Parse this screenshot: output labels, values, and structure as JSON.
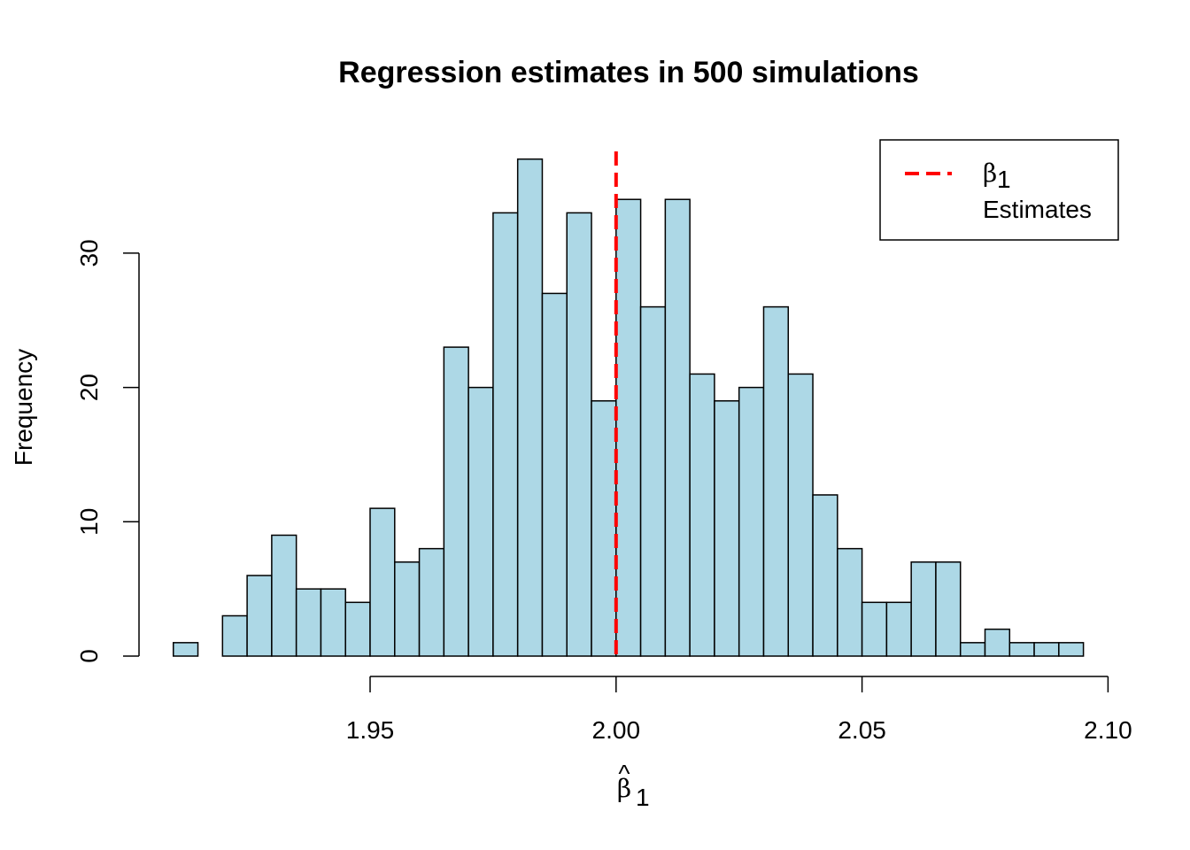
{
  "chart_data": {
    "type": "bar",
    "title": "Regression estimates in 500 simulations",
    "xlabel": "β̂1",
    "xlabel_parts": {
      "hat": "^",
      "symbol": "β",
      "subscript": "1"
    },
    "ylabel": "Frequency",
    "x_ticks": [
      "1.95",
      "2.00",
      "2.05",
      "2.10"
    ],
    "y_ticks": [
      "0",
      "10",
      "20",
      "30"
    ],
    "bin_start": 1.91,
    "bin_width": 0.005,
    "values": [
      1,
      0,
      3,
      6,
      9,
      5,
      5,
      4,
      11,
      7,
      8,
      23,
      20,
      33,
      37,
      27,
      33,
      19,
      34,
      26,
      34,
      21,
      19,
      20,
      26,
      21,
      12,
      8,
      4,
      4,
      7,
      7,
      1,
      2,
      1,
      1,
      1
    ],
    "bar_fill": "#add8e6",
    "bar_stroke": "#000000",
    "reference_line": {
      "x": 2.0,
      "color": "#ff0000",
      "style": "dashed",
      "label": "β1"
    },
    "legend": {
      "position": "top-right",
      "entries": [
        {
          "label_symbol": "β",
          "label_subscript": "1",
          "line_color": "#ff0000",
          "line_style": "dashed"
        },
        {
          "label": "Estimates"
        }
      ]
    },
    "xlim": [
      1.905,
      2.1
    ],
    "ylim": [
      0,
      37
    ],
    "grid": false
  }
}
